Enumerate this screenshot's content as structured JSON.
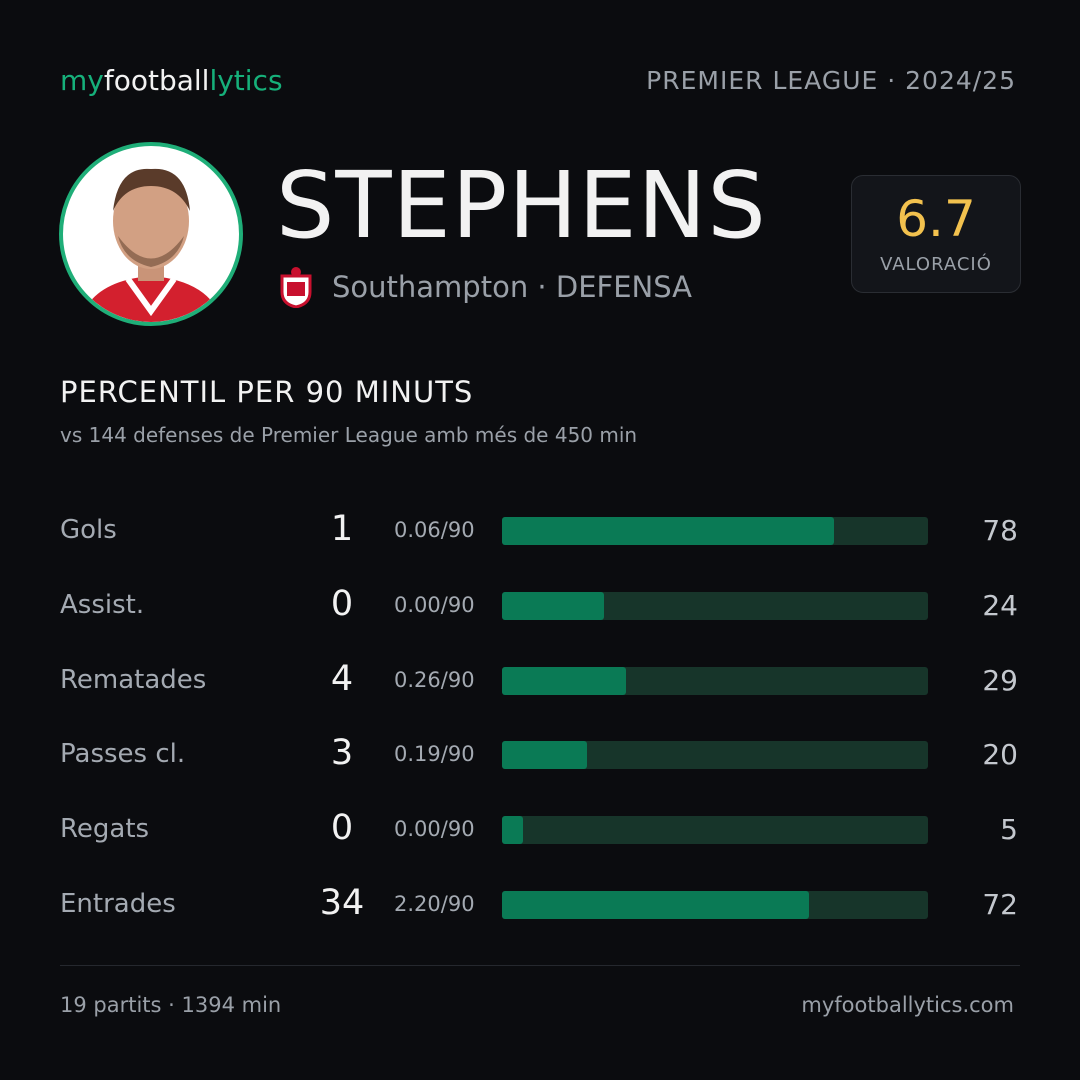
{
  "brand": {
    "parts": [
      "my",
      "football",
      "lytics"
    ]
  },
  "header": {
    "competition": "PREMIER LEAGUE · 2024/25"
  },
  "player": {
    "name": "STEPHENS",
    "club_line": "Southampton · DEFENSA",
    "rating": 6.7,
    "rating_label": "VALORACIÓ"
  },
  "section": {
    "title": "PERCENTIL PER 90 MINUTS",
    "subtitle": "vs 144 defenses de Premier League amb més de 450 min"
  },
  "stats": {
    "rows": [
      {
        "label": "Gols",
        "total": 1,
        "per90": "0.06/90",
        "percentile": 78
      },
      {
        "label": "Assist.",
        "total": 0,
        "per90": "0.00/90",
        "percentile": 24
      },
      {
        "label": "Rematades",
        "total": 4,
        "per90": "0.26/90",
        "percentile": 29
      },
      {
        "label": "Passes cl.",
        "total": 3,
        "per90": "0.19/90",
        "percentile": 20
      },
      {
        "label": "Regats",
        "total": 0,
        "per90": "0.00/90",
        "percentile": 5
      },
      {
        "label": "Entrades",
        "total": 34,
        "per90": "2.20/90",
        "percentile": 72
      }
    ]
  },
  "footer": {
    "left": "19 partits · 1394 min",
    "right": "myfootballytics.com"
  }
}
